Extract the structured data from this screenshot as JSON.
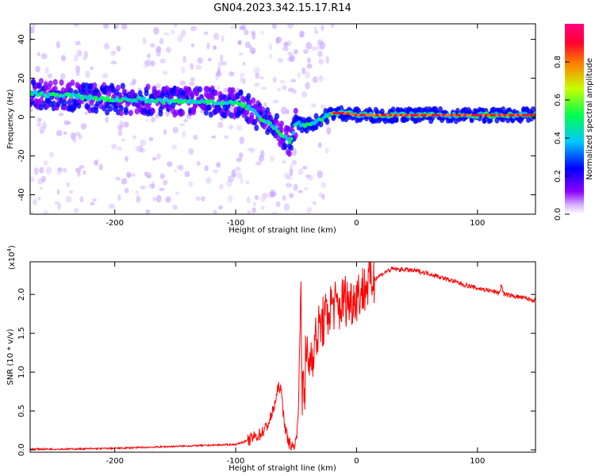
{
  "figure": {
    "title": "GN04.2023.342.15.17.R14"
  },
  "chart_data": [
    {
      "type": "heatmap",
      "title": "",
      "xlabel": "Height of straight line (km)",
      "ylabel": "Frequency (Hz)",
      "xlim": [
        -270,
        148
      ],
      "ylim": [
        -50,
        48
      ],
      "xticks": [
        -200,
        -100,
        0,
        100
      ],
      "xtick_labels": [
        "-200",
        "-100",
        "0",
        "100"
      ],
      "yticks": [
        -40,
        -20,
        0,
        20,
        40
      ],
      "ytick_labels": [
        "-40",
        "-20",
        "0",
        "20",
        "40"
      ],
      "colorbar": {
        "label": "Normalized spectral amplitude",
        "range": [
          0,
          1
        ],
        "ticks": [
          0.0,
          0.2,
          0.4,
          0.6,
          0.8
        ],
        "tick_labels": [
          "0.0",
          "0.2",
          "0.4",
          "0.6",
          "0.8"
        ],
        "colors": [
          "#ffffff",
          "#8a00ff",
          "#0000ff",
          "#00c8ff",
          "#00ff50",
          "#c8ff00",
          "#ff7800",
          "#ff0030",
          "#ff0080"
        ]
      },
      "ridge": {
        "x": [
          -270,
          -240,
          -220,
          -200,
          -180,
          -160,
          -140,
          -120,
          -100,
          -90,
          -80,
          -70,
          -60,
          -55,
          -52,
          -50,
          -45,
          -40,
          -35,
          -30,
          -20,
          -10,
          0,
          20,
          40,
          60,
          80,
          100,
          120,
          148
        ],
        "y": [
          12,
          11,
          10,
          9,
          9,
          8,
          8,
          8,
          7,
          5,
          0,
          -4,
          -10,
          -13,
          -8,
          -2,
          -4,
          -4,
          -3,
          -1,
          2,
          2,
          1,
          1,
          1,
          1,
          1,
          1,
          1,
          1
        ]
      },
      "grid": false
    },
    {
      "type": "line",
      "title": "",
      "xlabel": "Height of straight line (km)",
      "ylabel": "SNR (10 * v/v)",
      "y_multiplier": "(x10",
      "y_multiplier_exp": "4",
      "y_multiplier_close": ")",
      "xlim": [
        -270,
        148
      ],
      "ylim": [
        -0.03,
        2.42
      ],
      "xticks": [
        -200,
        -100,
        0,
        100
      ],
      "xtick_labels": [
        "-200",
        "-100",
        "0",
        "100"
      ],
      "yticks": [
        0.0,
        0.5,
        1.0,
        1.5,
        2.0
      ],
      "ytick_labels": [
        "0.0",
        "0.5",
        "1.0",
        "1.5",
        "2.0"
      ],
      "line_color": "#ff0000",
      "series": [
        {
          "x": [
            -270,
            -240,
            -200,
            -160,
            -140,
            -120,
            -100,
            -90,
            -80,
            -75,
            -70,
            -66,
            -64,
            -62,
            -60,
            -58,
            -56,
            -54,
            -52,
            -50,
            -48,
            -46,
            -45,
            -44,
            -43,
            -42,
            -40,
            -38,
            -35,
            -30,
            -25,
            -20,
            -15,
            -10,
            -5,
            0,
            5,
            10,
            15,
            20,
            25,
            30,
            35,
            40,
            50,
            60,
            70,
            80,
            90,
            100,
            110,
            118,
            120,
            122,
            130,
            140,
            148
          ],
          "y": [
            0.01,
            0.01,
            0.02,
            0.04,
            0.05,
            0.06,
            0.07,
            0.12,
            0.2,
            0.28,
            0.45,
            0.7,
            0.85,
            0.7,
            0.4,
            0.2,
            0.1,
            0.05,
            0.03,
            0.1,
            0.6,
            2.15,
            0.5,
            1.4,
            0.3,
            1.3,
            1.1,
            1.2,
            1.35,
            1.6,
            1.7,
            1.9,
            1.8,
            1.95,
            1.9,
            2.0,
            2.05,
            2.15,
            2.2,
            2.25,
            2.3,
            2.33,
            2.32,
            2.32,
            2.3,
            2.27,
            2.22,
            2.17,
            2.12,
            2.08,
            2.05,
            2.02,
            2.12,
            2.0,
            1.98,
            1.95,
            1.92
          ]
        }
      ],
      "grid": false
    }
  ]
}
